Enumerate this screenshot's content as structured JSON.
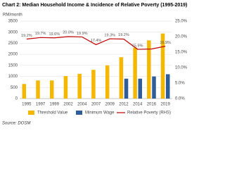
{
  "chart_data": {
    "type": "bar",
    "title": "Chart 2: Median Household Income & Incidence of Relative Poverty (1995-2019)",
    "y_label": "RM/month",
    "source": "Source: DOSM",
    "categories": [
      "1995",
      "1997",
      "1999",
      "2002",
      "2004",
      "2007",
      "2009",
      "2012",
      "2014",
      "2016",
      "2019"
    ],
    "series": [
      {
        "name": "Threshold Value",
        "color": "#f5b800",
        "type": "bar",
        "values": [
          660,
          820,
          820,
          1020,
          1120,
          1300,
          1500,
          1870,
          2300,
          2630,
          2940
        ]
      },
      {
        "name": "Minimum Wage",
        "color": "#2e5d9a",
        "type": "bar",
        "values": [
          null,
          null,
          null,
          null,
          null,
          null,
          null,
          900,
          900,
          1000,
          1100
        ]
      },
      {
        "name": "Relative Poverty (RHS)",
        "color": "#c00000",
        "type": "line",
        "axis": "y2",
        "values": [
          19.2,
          19.7,
          19.6,
          20.0,
          19.9,
          17.4,
          19.3,
          19.2,
          15.9,
          16.0,
          16.9
        ],
        "value_labels": [
          "19.2%",
          "19.7%",
          "19.6%",
          "20.0%",
          "19.9%",
          "17.4%",
          "19.3%",
          "19.2%",
          "15.9%",
          null,
          "16.9%"
        ]
      }
    ],
    "ylim": [
      0,
      3500
    ],
    "yticks": [
      0,
      500,
      1000,
      1500,
      2000,
      2500,
      3000,
      3500
    ],
    "y2lim": [
      0,
      25
    ],
    "y2ticks": [
      {
        "value": 0,
        "label": "0.0%"
      },
      {
        "value": 5,
        "label": "5.0%"
      },
      {
        "value": 10,
        "label": "10.0%"
      },
      {
        "value": 15,
        "label": "15.0%"
      },
      {
        "value": 20,
        "label": "20.0%"
      },
      {
        "value": 25,
        "label": "25.0%"
      }
    ],
    "grid": true,
    "legend": "bottom"
  }
}
